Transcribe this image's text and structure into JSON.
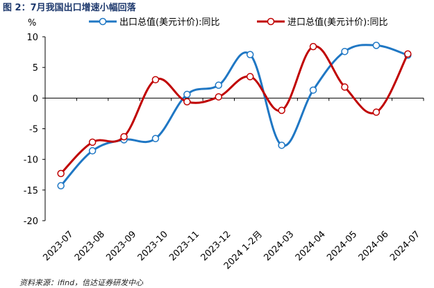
{
  "figure_title": "图 2：7月我国出口增速小幅回落",
  "source_note": "资料来源：ifind，信达证券研发中心",
  "chart_data": {
    "type": "line",
    "unit_label": "%",
    "categories": [
      "2023-07",
      "2023-08",
      "2023-09",
      "2023-10",
      "2023-11",
      "2023-12",
      "2024 1-2月",
      "2024-03",
      "2024-04",
      "2024-05",
      "2024-06",
      "2024-07"
    ],
    "series": [
      {
        "name": "出口总值(美元计价):同比",
        "color": "#1f77c4",
        "values": [
          -14.3,
          -8.6,
          -6.8,
          -6.6,
          0.6,
          2.1,
          7.1,
          -7.7,
          1.3,
          7.6,
          8.6,
          7.0
        ]
      },
      {
        "name": "进口总值(美元计价):同比",
        "color": "#c00000",
        "values": [
          -12.3,
          -7.2,
          -6.3,
          3.0,
          -0.6,
          0.2,
          3.5,
          -2.0,
          8.4,
          1.8,
          -2.3,
          7.2
        ]
      }
    ],
    "ylim": [
      -20,
      10
    ],
    "yticks": [
      -20,
      -15,
      -10,
      -5,
      0,
      5,
      10
    ],
    "grid": false,
    "legend_position": "top"
  }
}
